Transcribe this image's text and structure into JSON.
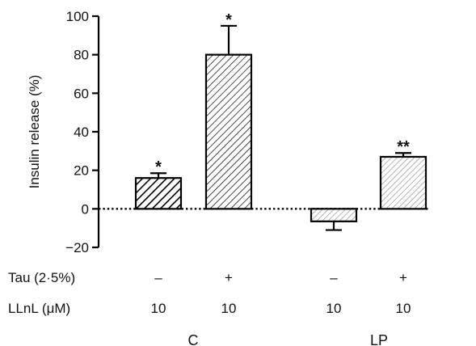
{
  "chart_data": {
    "type": "bar",
    "ylabel": "Insulin release (%)",
    "ylim": [
      -20,
      100
    ],
    "yticks": [
      -20,
      0,
      20,
      40,
      60,
      80,
      100
    ],
    "zero_line": "dotted",
    "grid": false,
    "bars": [
      {
        "group": "C",
        "tau": "–",
        "llnl": "10",
        "value": 16,
        "error": 2.5,
        "annotation": "*",
        "hatch": "dense-bold-diagonal"
      },
      {
        "group": "C",
        "tau": "+",
        "llnl": "10",
        "value": 80,
        "error": 15,
        "annotation": "*",
        "hatch": "fine-diagonal"
      },
      {
        "group": "LP",
        "tau": "–",
        "llnl": "10",
        "value": -6.5,
        "error": 4.5,
        "annotation": "",
        "hatch": "light-diagonal"
      },
      {
        "group": "LP",
        "tau": "+",
        "llnl": "10",
        "value": 27,
        "error": 2,
        "annotation": "**",
        "hatch": "light-diagonal"
      }
    ],
    "row_labels": {
      "tau": "Tau (2·5%)",
      "llnl": "LLnL (μM)"
    },
    "groups": [
      "C",
      "LP"
    ]
  }
}
